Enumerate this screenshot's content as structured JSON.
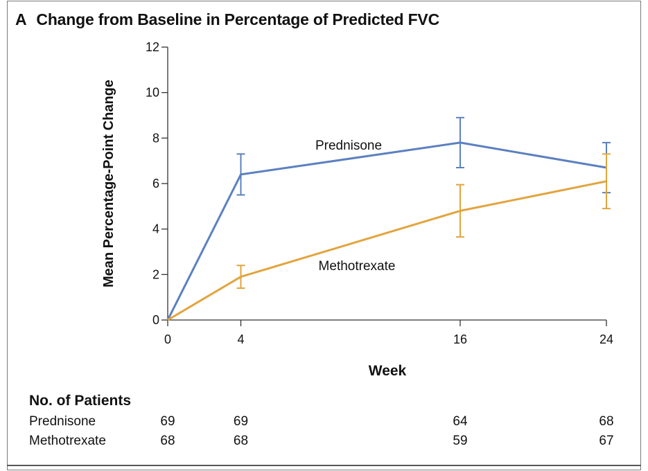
{
  "panel": {
    "letter": "A",
    "title": "Change from Baseline in Percentage of Predicted FVC"
  },
  "chart_data": {
    "type": "line",
    "xlabel": "Week",
    "ylabel": "Mean Percentage-Point Change",
    "x": [
      0,
      4,
      16,
      24
    ],
    "x_ticks": [
      "0",
      "4",
      "16",
      "24"
    ],
    "ylim": [
      0,
      12
    ],
    "y_ticks": [
      "0",
      "2",
      "4",
      "6",
      "8",
      "10",
      "12"
    ],
    "grid": false,
    "series": [
      {
        "name": "Prednisone",
        "color": "#5b80c0",
        "values": [
          0,
          6.4,
          7.8,
          6.7
        ],
        "error_low": [
          null,
          5.5,
          6.7,
          5.6
        ],
        "error_high": [
          null,
          7.3,
          8.9,
          7.8
        ]
      },
      {
        "name": "Methotrexate",
        "color": "#e2a43d",
        "values": [
          0,
          1.9,
          4.8,
          6.1
        ],
        "error_low": [
          null,
          1.4,
          3.65,
          4.9
        ],
        "error_high": [
          null,
          2.4,
          5.95,
          7.3
        ]
      }
    ]
  },
  "patients_table": {
    "heading": "No. of Patients",
    "rows": [
      {
        "label": "Prednisone",
        "values": [
          "69",
          "69",
          "64",
          "68"
        ]
      },
      {
        "label": "Methotrexate",
        "values": [
          "68",
          "68",
          "59",
          "67"
        ]
      }
    ]
  }
}
